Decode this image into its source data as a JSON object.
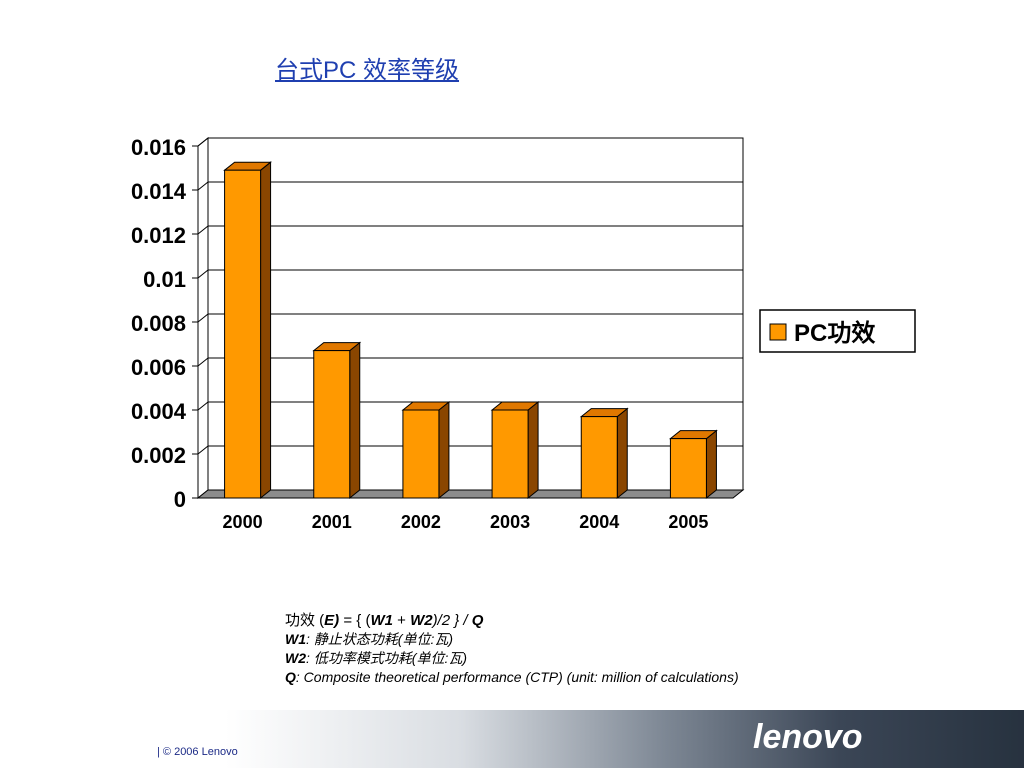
{
  "slide": {
    "title": "台式PC 效率等级"
  },
  "chart_data": {
    "type": "bar",
    "title": "",
    "xlabel": "",
    "ylabel": "",
    "categories": [
      "2000",
      "2001",
      "2002",
      "2003",
      "2004",
      "2005"
    ],
    "series": [
      {
        "name": "PC功效",
        "values": [
          0.0149,
          0.0067,
          0.004,
          0.004,
          0.0037,
          0.0027
        ]
      }
    ],
    "ylim": [
      0,
      0.016
    ],
    "yticks": [
      "0",
      "0.002",
      "0.004",
      "0.006",
      "0.008",
      "0.01",
      "0.012",
      "0.014",
      "0.016"
    ],
    "grid": true,
    "legend_position": "right",
    "three_d": true,
    "colors": {
      "bar_front": "#ff9900",
      "bar_side": "#8a4600",
      "bar_top": "#e07800",
      "floor": "#8c8c8c"
    }
  },
  "notes": {
    "formula_prefix": "功效 (",
    "formula_e": "E)",
    "formula_mid": " = { (",
    "formula_w1": "W1",
    "formula_plus": " + ",
    "formula_w2": "W2",
    "formula_end": ")/2 }  / ",
    "formula_q": "Q",
    "w1_key": "W1",
    "w1_desc": ": 静止状态功耗(单位:瓦)",
    "w2_key": "W2",
    "w2_desc": ": 低功率模式功耗(单位:瓦)",
    "q_key": "Q",
    "q_desc": ": Composite theoretical performance (CTP) (unit: million of calculations)"
  },
  "footer": {
    "copyright": "| © 2006 Lenovo",
    "logo_text": "lenovo"
  }
}
